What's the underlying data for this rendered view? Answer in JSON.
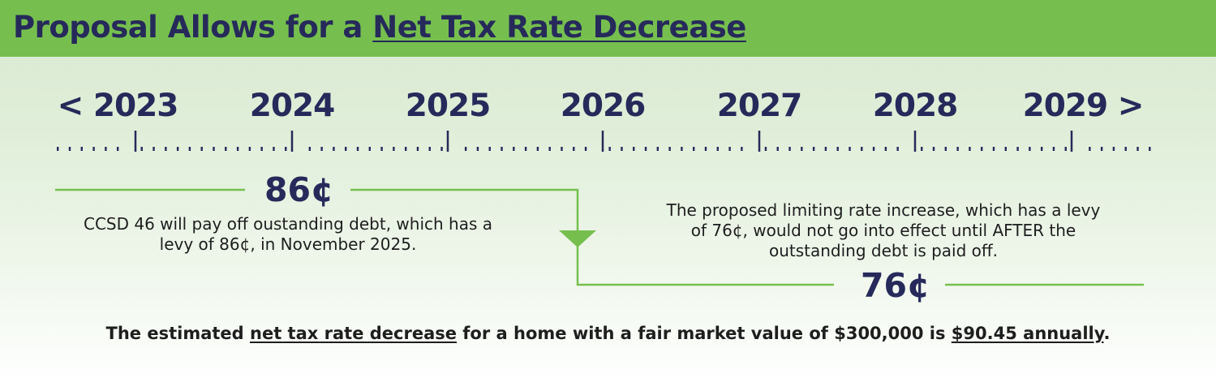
{
  "header": {
    "title_prefix": "Proposal Allows for a ",
    "title_emphasis": "Net Tax Rate Decrease"
  },
  "timeline": {
    "prev_arrow": "<",
    "next_arrow": ">",
    "years": [
      "2023",
      "2024",
      "2025",
      "2026",
      "2027",
      "2028",
      "2029"
    ]
  },
  "current_levy": {
    "value": "86¢",
    "description": "CCSD 46 will pay off oustanding debt, which has a levy of 86¢, in November 2025."
  },
  "proposed_levy": {
    "value": "76¢",
    "description": "The proposed limiting rate increase, which has a levy of 76¢, would not go into effect until AFTER the outstanding debt is paid off."
  },
  "summary": {
    "part1": "The estimated ",
    "emphasis1": "net tax rate decrease",
    "part2": " for a home with a fair market value of $300,000 is ",
    "emphasis2": "$90.45 annually",
    "part3": "."
  },
  "colors": {
    "header_green": "#76bf4f",
    "navy": "#262a5a",
    "line_green": "#76bf4f"
  }
}
